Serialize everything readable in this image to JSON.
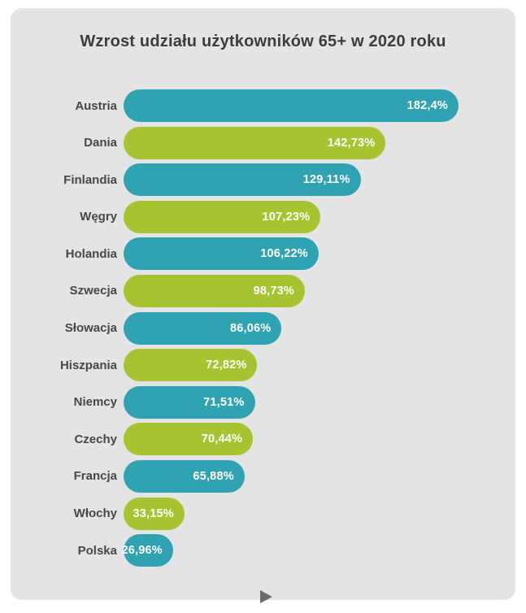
{
  "chart_data": {
    "type": "bar",
    "orientation": "horizontal",
    "title": "Wzrost udziału użytkowników 65+ w 2020 roku",
    "categories": [
      "Austria",
      "Dania",
      "Finlandia",
      "Węgry",
      "Holandia",
      "Szwecja",
      "Słowacja",
      "Hiszpania",
      "Niemcy",
      "Czechy",
      "Francja",
      "Włochy",
      "Polska"
    ],
    "values": [
      182.4,
      142.73,
      129.11,
      107.23,
      106.22,
      98.73,
      86.06,
      72.82,
      71.51,
      70.44,
      65.88,
      33.15,
      26.96
    ],
    "value_labels": [
      "182,4%",
      "142,73%",
      "129,11%",
      "107,23%",
      "106,22%",
      "98,73%",
      "86,06%",
      "72,82%",
      "71,51%",
      "70,44%",
      "65,88%",
      "33,15%",
      "26,96%"
    ],
    "xlabel": "",
    "ylabel": "",
    "xlim": [
      0,
      182.4
    ],
    "grid": false,
    "legend": "none",
    "bar_colors_alternate": [
      "#2fa3b2",
      "#a6c42f"
    ]
  },
  "colors": {
    "page_bg": "#ffffff",
    "card_bg": "#e4e4e4",
    "teal": "#2fa3b2",
    "green": "#a6c42f",
    "title_text": "#3c3c3c",
    "label_text": "#474747",
    "value_text": "#ffffff",
    "arrow": "#6b6b6b"
  },
  "footer": {
    "next_arrow_symbol": "play-right-triangle"
  }
}
